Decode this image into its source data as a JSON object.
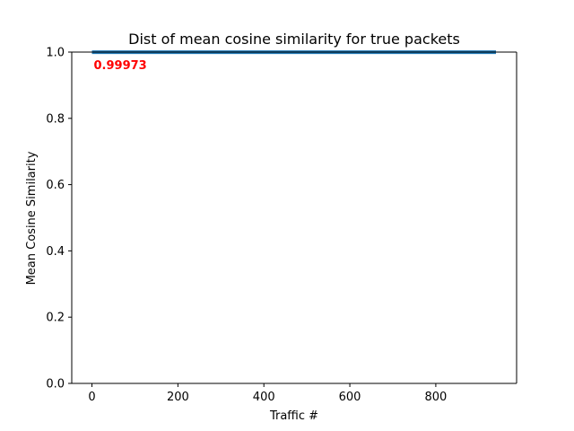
{
  "chart_data": {
    "type": "line",
    "title": "Dist of mean cosine similarity for true packets",
    "xlabel": "Traffic #",
    "ylabel": "Mean Cosine Similarity",
    "xlim": [
      -47,
      988
    ],
    "ylim": [
      0.0,
      1.0
    ],
    "xticks": [
      0,
      200,
      400,
      600,
      800
    ],
    "yticks": [
      0.0,
      0.2,
      0.4,
      0.6,
      0.8,
      1.0
    ],
    "xtick_labels": [
      "0",
      "200",
      "400",
      "600",
      "800"
    ],
    "ytick_labels": [
      "0.0",
      "0.2",
      "0.4",
      "0.6",
      "0.8",
      "1.0"
    ],
    "grid": false,
    "series": [
      {
        "x": [
          0,
          940
        ],
        "values": [
          0.99973,
          0.99973
        ],
        "color": "#1f77b4"
      }
    ],
    "annotation": {
      "text": "0.99973",
      "x": 0,
      "y": 0.99973,
      "color": "#ff0000"
    }
  }
}
